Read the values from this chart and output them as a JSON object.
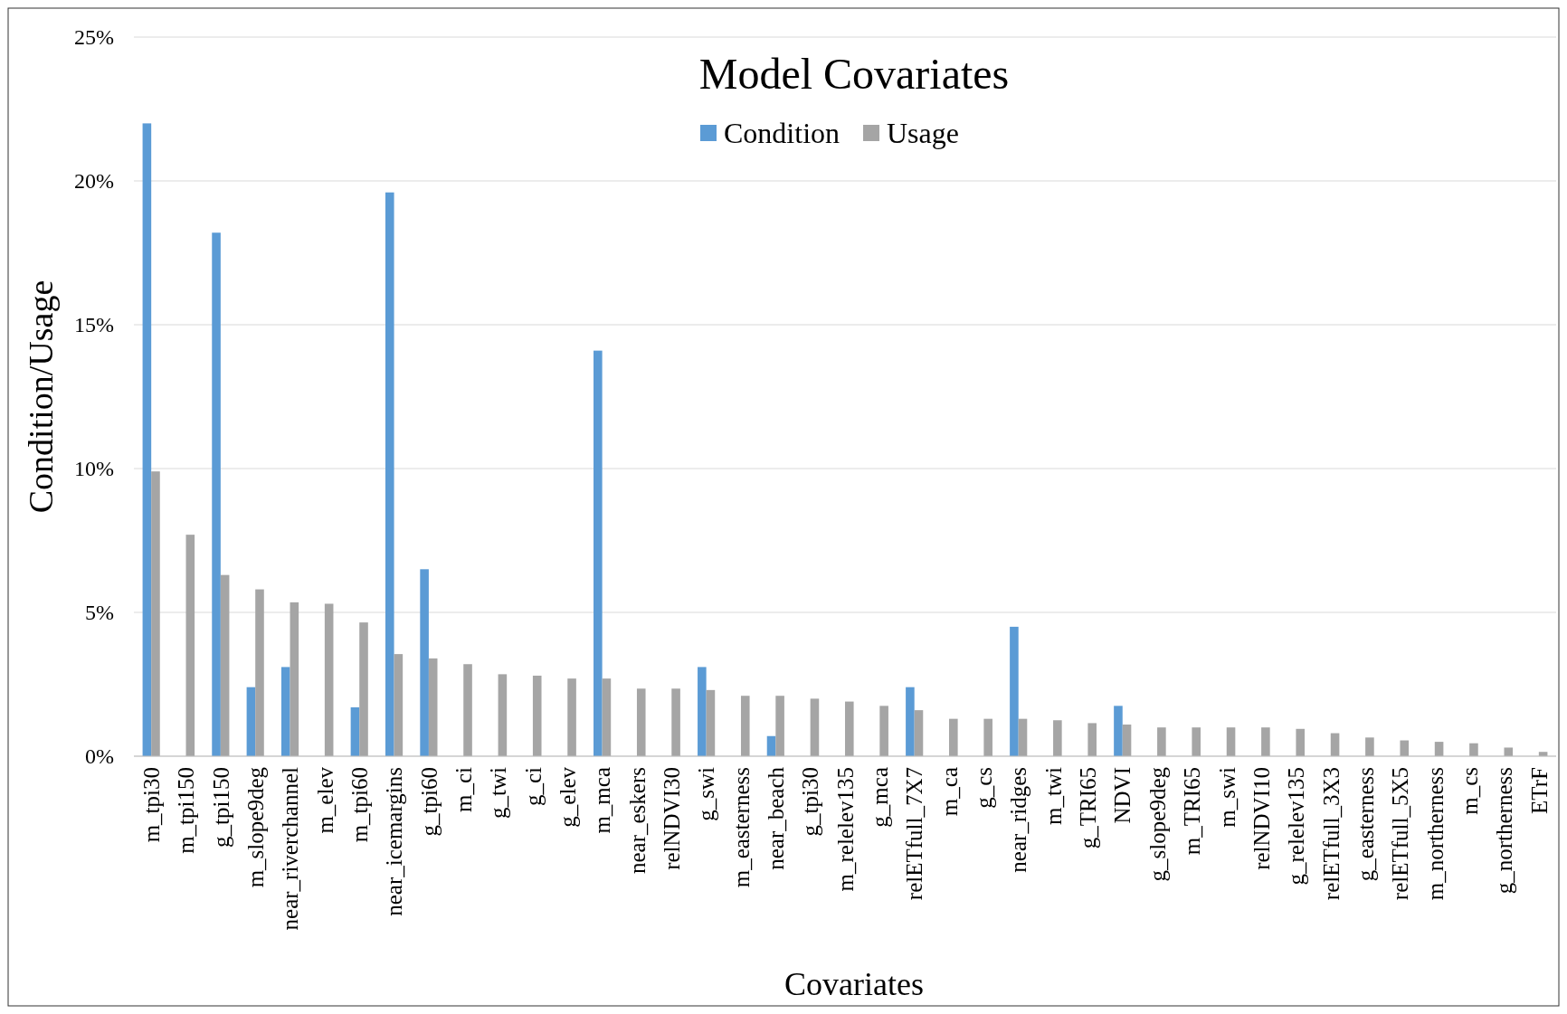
{
  "chart_data": {
    "type": "bar",
    "title": "Model Covariates",
    "xlabel": "Covariates",
    "ylabel": "Condition/Usage",
    "categories": [
      "m_tpi30",
      "m_tpi150",
      "g_tpi150",
      "m_slope9deg",
      "near_riverchannel",
      "m_elev",
      "m_tpi60",
      "near_icemargins",
      "g_tpi60",
      "m_ci",
      "g_twi",
      "g_ci",
      "g_elev",
      "m_mca",
      "near_eskers",
      "relNDVI30",
      "g_swi",
      "m_easterness",
      "near_beach",
      "g_tpi30",
      "m_relelev135",
      "g_mca",
      "relETfull_7X7",
      "m_ca",
      "g_cs",
      "near_ridges",
      "m_twi",
      "g_TRI65",
      "NDVI",
      "g_slope9deg",
      "m_TRI65",
      "m_swi",
      "relNDVI10",
      "g_relelev135",
      "relETfull_3X3",
      "g_easterness",
      "relETfull_5X5",
      "m_northerness",
      "m_cs",
      "g_northerness",
      "ETrF"
    ],
    "series": [
      {
        "name": "Condition",
        "color": "#5b9bd5",
        "values": [
          22.0,
          null,
          18.2,
          2.4,
          3.1,
          null,
          1.7,
          19.6,
          6.5,
          null,
          null,
          null,
          null,
          14.1,
          null,
          null,
          3.1,
          null,
          0.7,
          null,
          null,
          null,
          2.4,
          null,
          null,
          4.5,
          null,
          null,
          1.75,
          null,
          null,
          null,
          null,
          null,
          null,
          null,
          null,
          null,
          null,
          null,
          null
        ]
      },
      {
        "name": "Usage",
        "color": "#a5a5a5",
        "values": [
          9.9,
          7.7,
          6.3,
          5.8,
          5.35,
          5.3,
          4.65,
          3.55,
          3.4,
          3.2,
          2.85,
          2.8,
          2.7,
          2.7,
          2.35,
          2.35,
          2.3,
          2.1,
          2.1,
          2.0,
          1.9,
          1.75,
          1.6,
          1.3,
          1.3,
          1.3,
          1.25,
          1.15,
          1.1,
          1.0,
          1.0,
          1.0,
          1.0,
          0.95,
          0.8,
          0.65,
          0.55,
          0.5,
          0.45,
          0.3,
          0.15
        ]
      }
    ],
    "ylim": [
      0,
      25
    ],
    "yticks": [
      {
        "value": 0,
        "label": "0%"
      },
      {
        "value": 5,
        "label": "5%"
      },
      {
        "value": 10,
        "label": "10%"
      },
      {
        "value": 15,
        "label": "15%"
      },
      {
        "value": 20,
        "label": "20%"
      },
      {
        "value": 25,
        "label": "25%"
      }
    ],
    "grid": "y",
    "legend": "top"
  }
}
